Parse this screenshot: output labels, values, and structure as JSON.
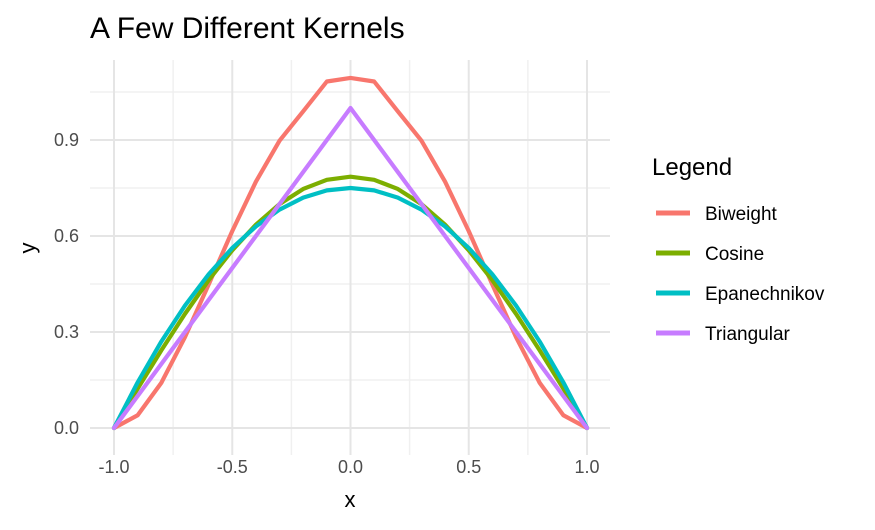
{
  "chart_data": {
    "type": "line",
    "title": "A Few Different Kernels",
    "xlabel": "x",
    "ylabel": "y",
    "xlim": [
      -1.0,
      1.0
    ],
    "ylim": [
      0.0,
      1.1
    ],
    "x_ticks": [
      {
        "value": -1.0,
        "label": "-1.0"
      },
      {
        "value": -0.5,
        "label": "-0.5"
      },
      {
        "value": 0.0,
        "label": "0.0"
      },
      {
        "value": 0.5,
        "label": "0.5"
      },
      {
        "value": 1.0,
        "label": "1.0"
      }
    ],
    "y_ticks": [
      {
        "value": 0.0,
        "label": "0.0"
      },
      {
        "value": 0.3,
        "label": "0.3"
      },
      {
        "value": 0.6,
        "label": "0.6"
      },
      {
        "value": 0.9,
        "label": "0.9"
      }
    ],
    "grid": true,
    "legend": {
      "title": "Legend",
      "placement": "right"
    },
    "x": [
      -1.0,
      -0.9,
      -0.8,
      -0.7,
      -0.6,
      -0.5,
      -0.4,
      -0.3,
      -0.2,
      -0.1,
      0.0,
      0.1,
      0.2,
      0.3,
      0.4,
      0.5,
      0.6,
      0.7,
      0.8,
      0.9,
      1.0
    ],
    "series": [
      {
        "name": "Biweight",
        "color": "#F8766D",
        "values": [
          0.0,
          0.0399,
          0.1411,
          0.2838,
          0.448,
          0.6152,
          0.7697,
          0.898,
          0.9898,
          1.0828,
          1.0938,
          1.0828,
          0.9898,
          0.898,
          0.7697,
          0.6152,
          0.448,
          0.2838,
          0.1411,
          0.0399,
          0.0
        ]
      },
      {
        "name": "Cosine",
        "color": "#7CAE00",
        "values": [
          0.0,
          0.1229,
          0.2427,
          0.3566,
          0.4617,
          0.5554,
          0.6354,
          0.6998,
          0.747,
          0.7757,
          0.7854,
          0.7757,
          0.747,
          0.6998,
          0.6354,
          0.5554,
          0.4617,
          0.3566,
          0.2427,
          0.1229,
          0.0
        ]
      },
      {
        "name": "Epanechnikov",
        "color": "#00BFC4",
        "values": [
          0.0,
          0.1425,
          0.27,
          0.3825,
          0.48,
          0.5625,
          0.63,
          0.6825,
          0.72,
          0.7425,
          0.75,
          0.7425,
          0.72,
          0.6825,
          0.63,
          0.5625,
          0.48,
          0.3825,
          0.27,
          0.1425,
          0.0
        ]
      },
      {
        "name": "Triangular",
        "color": "#C77CFF",
        "values": [
          0.0,
          0.1,
          0.2,
          0.3,
          0.4,
          0.5,
          0.6,
          0.7,
          0.8,
          0.9,
          1.0,
          0.9,
          0.8,
          0.7,
          0.6,
          0.5,
          0.4,
          0.3,
          0.2,
          0.1,
          0.0
        ]
      }
    ]
  }
}
